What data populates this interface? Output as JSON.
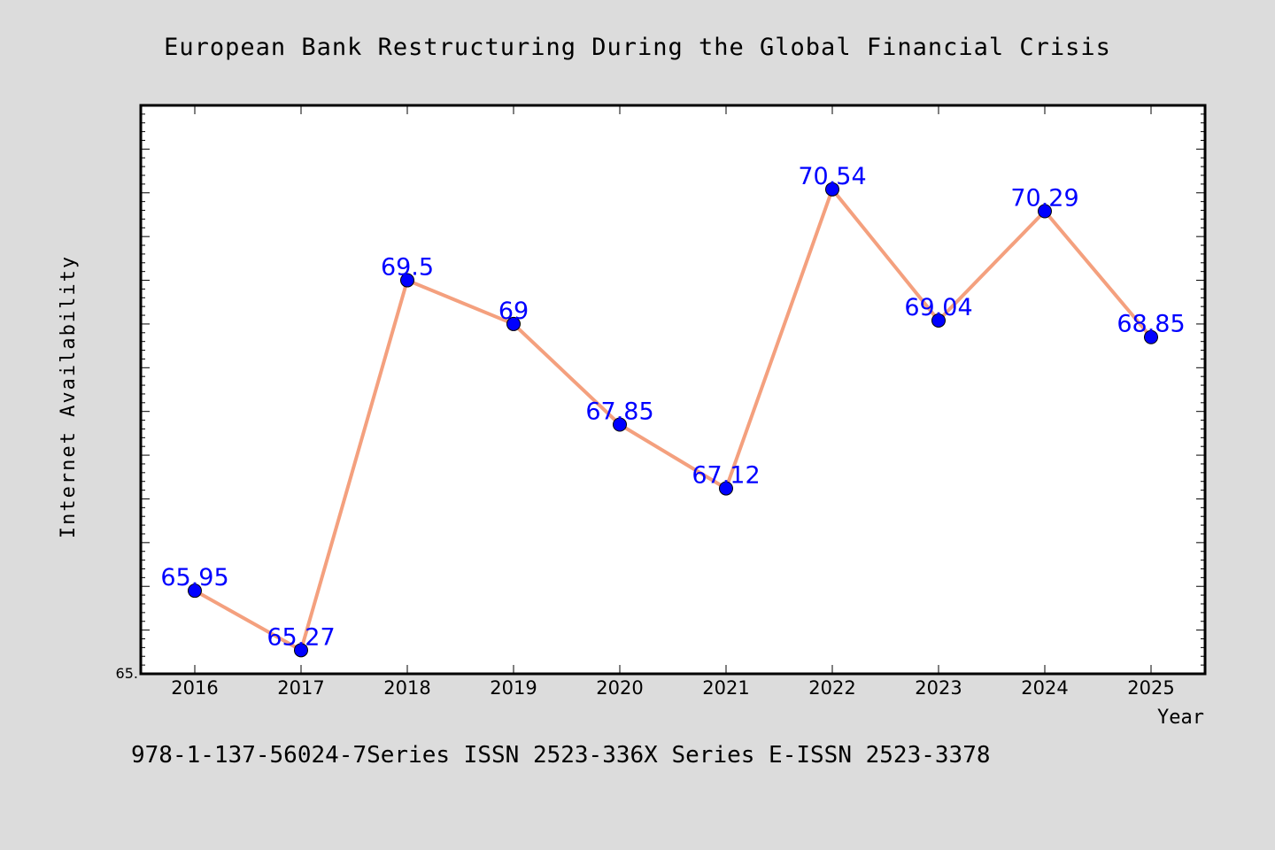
{
  "chart_data": {
    "type": "line",
    "title": "European Bank Restructuring During the Global Financial Crisis",
    "xlabel": "Year",
    "ylabel": "Internet Availability",
    "categories": [
      "2016",
      "2017",
      "2018",
      "2019",
      "2020",
      "2021",
      "2022",
      "2023",
      "2024",
      "2025"
    ],
    "series": [
      {
        "values": [
          65.95,
          65.27,
          69.5,
          69,
          67.85,
          67.12,
          70.54,
          69.04,
          70.29,
          68.85
        ],
        "value_labels": [
          "65.95",
          "65.27",
          "69.5",
          "69",
          "67.85",
          "67.12",
          "70.54",
          "69.04",
          "70.29",
          "68.85"
        ]
      }
    ],
    "ylim": [
      65,
      71.5
    ],
    "y_tick_label": "65.",
    "grid": false,
    "colors": {
      "background": "#dcdcdc",
      "plot_background": "#ffffff",
      "line": "#f4a07e",
      "marker": "#0000ff",
      "value_label": "#0000ff",
      "text": "#000000"
    }
  },
  "footer_text": "978-1-137-56024-7Series ISSN 2523-336X Series E-ISSN 2523-3378"
}
